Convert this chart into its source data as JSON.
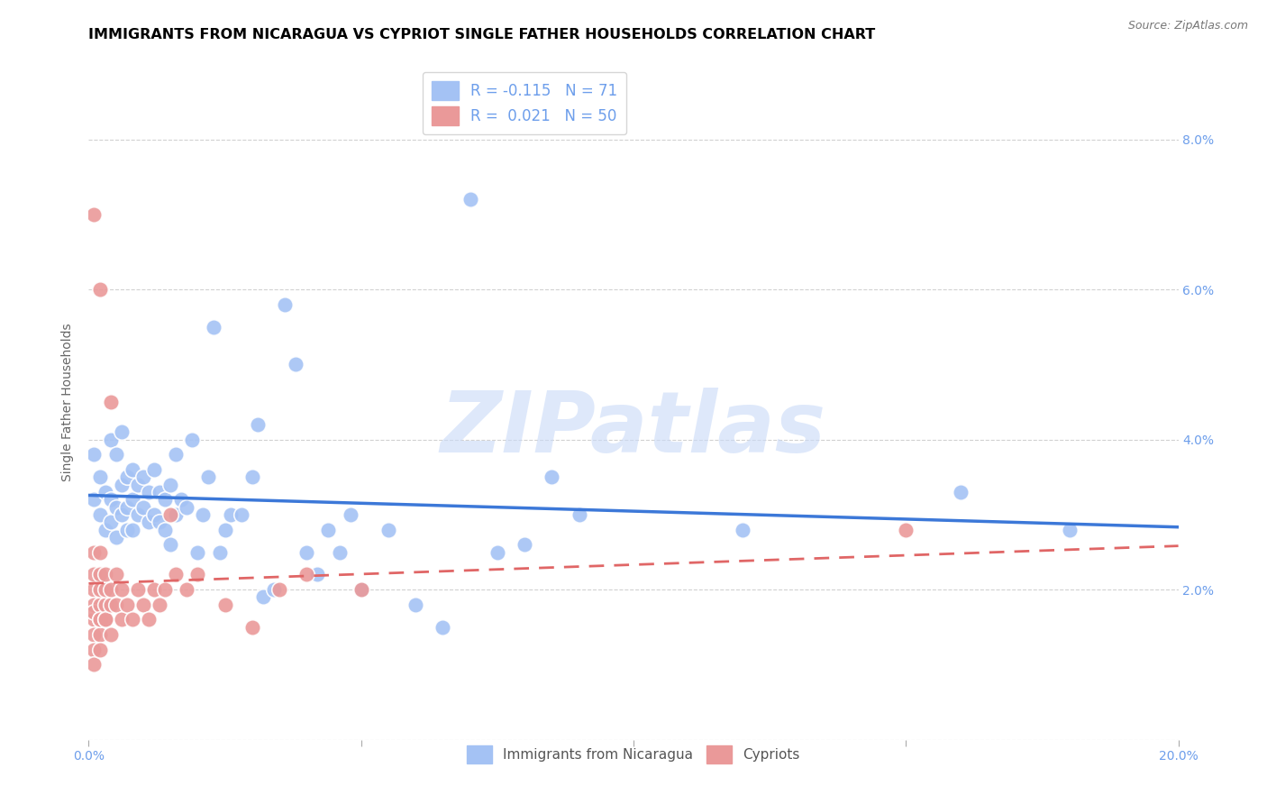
{
  "title": "IMMIGRANTS FROM NICARAGUA VS CYPRIOT SINGLE FATHER HOUSEHOLDS CORRELATION CHART",
  "source": "Source: ZipAtlas.com",
  "ylabel": "Single Father Households",
  "xlim": [
    0,
    0.2
  ],
  "ylim": [
    0,
    0.09
  ],
  "x_ticks": [
    0.0,
    0.05,
    0.1,
    0.15,
    0.2
  ],
  "x_tick_labels": [
    "0.0%",
    "",
    "",
    "",
    "20.0%"
  ],
  "y_ticks": [
    0.0,
    0.02,
    0.04,
    0.06,
    0.08
  ],
  "y_tick_labels_right": [
    "",
    "2.0%",
    "4.0%",
    "6.0%",
    "8.0%"
  ],
  "legend1_label_r": "R = -0.115",
  "legend1_label_n": "N = 71",
  "legend2_label_r": "R =  0.021",
  "legend2_label_n": "N = 50",
  "watermark": "ZIPatlas",
  "blue_color": "#a4c2f4",
  "pink_color": "#ea9999",
  "blue_line_color": "#3c78d8",
  "pink_line_color": "#e06666",
  "background_color": "#ffffff",
  "grid_color": "#cccccc",
  "axis_color": "#6d9eeb",
  "title_color": "#000000",
  "title_fontsize": 11.5,
  "axis_label_fontsize": 10,
  "tick_fontsize": 10,
  "blue_scatter_x": [
    0.001,
    0.001,
    0.002,
    0.002,
    0.003,
    0.003,
    0.004,
    0.004,
    0.004,
    0.005,
    0.005,
    0.005,
    0.006,
    0.006,
    0.006,
    0.007,
    0.007,
    0.007,
    0.008,
    0.008,
    0.008,
    0.009,
    0.009,
    0.01,
    0.01,
    0.011,
    0.011,
    0.012,
    0.012,
    0.013,
    0.013,
    0.014,
    0.014,
    0.015,
    0.015,
    0.016,
    0.016,
    0.017,
    0.018,
    0.019,
    0.02,
    0.021,
    0.022,
    0.023,
    0.024,
    0.025,
    0.026,
    0.028,
    0.03,
    0.031,
    0.032,
    0.034,
    0.036,
    0.038,
    0.04,
    0.042,
    0.044,
    0.046,
    0.048,
    0.05,
    0.055,
    0.06,
    0.065,
    0.07,
    0.075,
    0.08,
    0.085,
    0.09,
    0.12,
    0.16,
    0.18
  ],
  "blue_scatter_y": [
    0.032,
    0.038,
    0.03,
    0.035,
    0.028,
    0.033,
    0.029,
    0.032,
    0.04,
    0.027,
    0.031,
    0.038,
    0.03,
    0.034,
    0.041,
    0.028,
    0.031,
    0.035,
    0.028,
    0.032,
    0.036,
    0.03,
    0.034,
    0.031,
    0.035,
    0.029,
    0.033,
    0.03,
    0.036,
    0.029,
    0.033,
    0.028,
    0.032,
    0.026,
    0.034,
    0.03,
    0.038,
    0.032,
    0.031,
    0.04,
    0.025,
    0.03,
    0.035,
    0.055,
    0.025,
    0.028,
    0.03,
    0.03,
    0.035,
    0.042,
    0.019,
    0.02,
    0.058,
    0.05,
    0.025,
    0.022,
    0.028,
    0.025,
    0.03,
    0.02,
    0.028,
    0.018,
    0.015,
    0.072,
    0.025,
    0.026,
    0.035,
    0.03,
    0.028,
    0.033,
    0.028
  ],
  "pink_scatter_x": [
    0.001,
    0.001,
    0.001,
    0.001,
    0.001,
    0.001,
    0.001,
    0.001,
    0.001,
    0.001,
    0.002,
    0.002,
    0.002,
    0.002,
    0.002,
    0.002,
    0.002,
    0.002,
    0.002,
    0.003,
    0.003,
    0.003,
    0.003,
    0.003,
    0.004,
    0.004,
    0.004,
    0.004,
    0.005,
    0.005,
    0.006,
    0.006,
    0.007,
    0.008,
    0.009,
    0.01,
    0.011,
    0.012,
    0.013,
    0.014,
    0.015,
    0.016,
    0.018,
    0.02,
    0.025,
    0.03,
    0.035,
    0.04,
    0.05,
    0.15
  ],
  "pink_scatter_y": [
    0.02,
    0.022,
    0.016,
    0.018,
    0.014,
    0.025,
    0.012,
    0.01,
    0.017,
    0.07,
    0.016,
    0.018,
    0.02,
    0.022,
    0.014,
    0.06,
    0.012,
    0.025,
    0.016,
    0.016,
    0.018,
    0.02,
    0.022,
    0.016,
    0.018,
    0.02,
    0.014,
    0.045,
    0.018,
    0.022,
    0.016,
    0.02,
    0.018,
    0.016,
    0.02,
    0.018,
    0.016,
    0.02,
    0.018,
    0.02,
    0.03,
    0.022,
    0.02,
    0.022,
    0.018,
    0.015,
    0.02,
    0.022,
    0.02,
    0.028
  ]
}
